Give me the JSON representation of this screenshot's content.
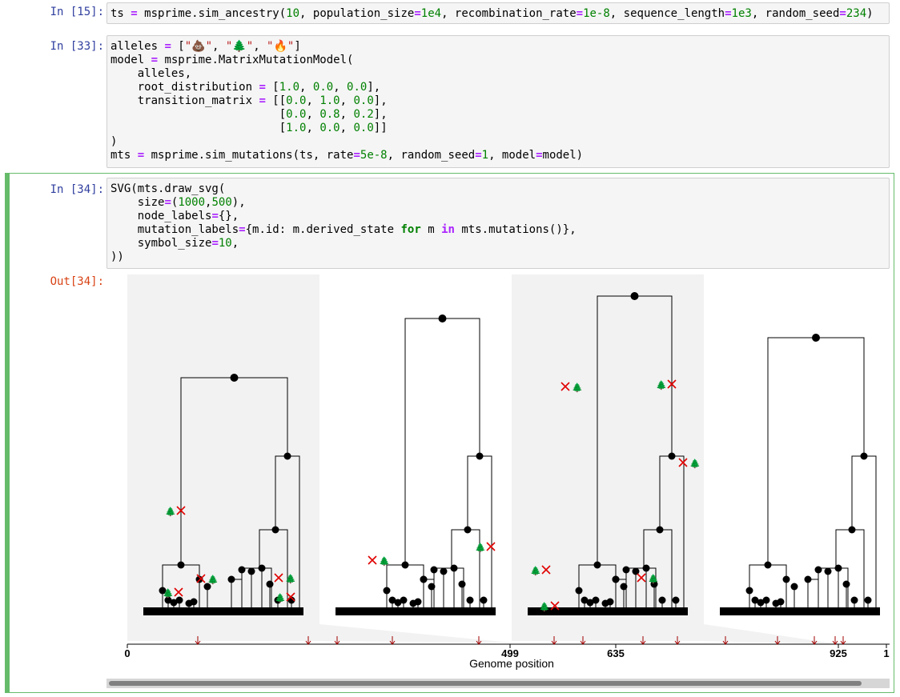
{
  "cells": [
    {
      "prompt": "In [15]:"
    },
    {
      "prompt": "In [33]:"
    },
    {
      "prompt": "In [34]:",
      "out_prompt": "Out[34]:"
    }
  ],
  "output": {
    "x_axis_label": "Genome position",
    "tick_labels": [
      "0",
      "499",
      "635",
      "925",
      "1"
    ],
    "mutation_symbol": "🌲",
    "mutation_marker_color": "#e00000",
    "node_color": "#000000",
    "shaded_tree_color": "#f2f2f2"
  }
}
